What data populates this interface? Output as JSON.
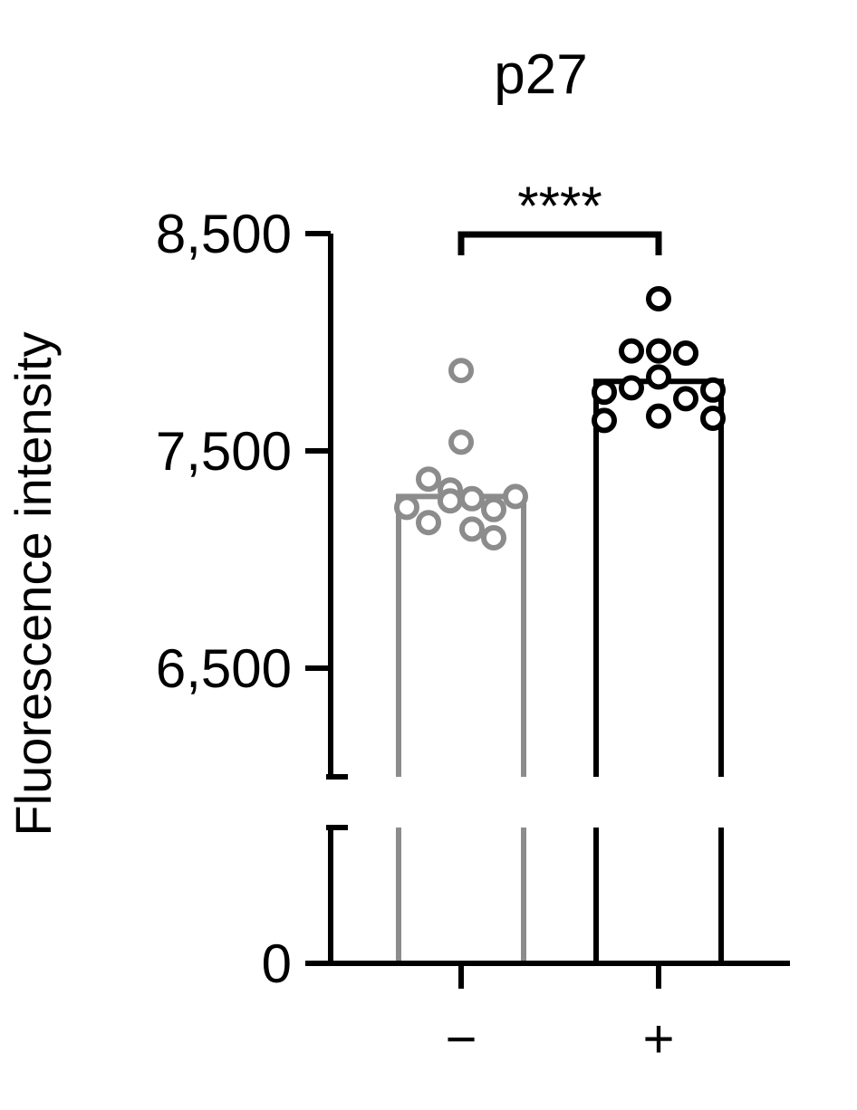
{
  "chart_data": {
    "type": "bar",
    "title": "p27",
    "xlabel": "",
    "ylabel": "Fluorescence intensity",
    "categories": [
      "−",
      "+"
    ],
    "y_axis": {
      "broken": true,
      "lower_segment": [
        0,
        0
      ],
      "upper_segment": [
        6000,
        8500
      ],
      "ticks": [
        {
          "value": 8500,
          "label": "8,500"
        },
        {
          "value": 7500,
          "label": "7,500"
        },
        {
          "value": 6500,
          "label": "6,500"
        },
        {
          "value": 0,
          "label": "0"
        }
      ]
    },
    "grid": false,
    "legend": "none",
    "series": [
      {
        "values": [
          7290,
          7820
        ],
        "colors": [
          "#8c8c8c",
          "#000000"
        ]
      }
    ],
    "points": [
      [
        7870,
        7540,
        7370,
        7320,
        7240,
        7230,
        7290,
        7270,
        7280,
        7170,
        7140,
        7100
      ],
      [
        8200,
        7960,
        7950,
        7960,
        7840,
        7790,
        7740,
        7770,
        7780,
        7640,
        7660,
        7650
      ]
    ],
    "significance": {
      "between": [
        0,
        1
      ],
      "label": "****"
    }
  }
}
